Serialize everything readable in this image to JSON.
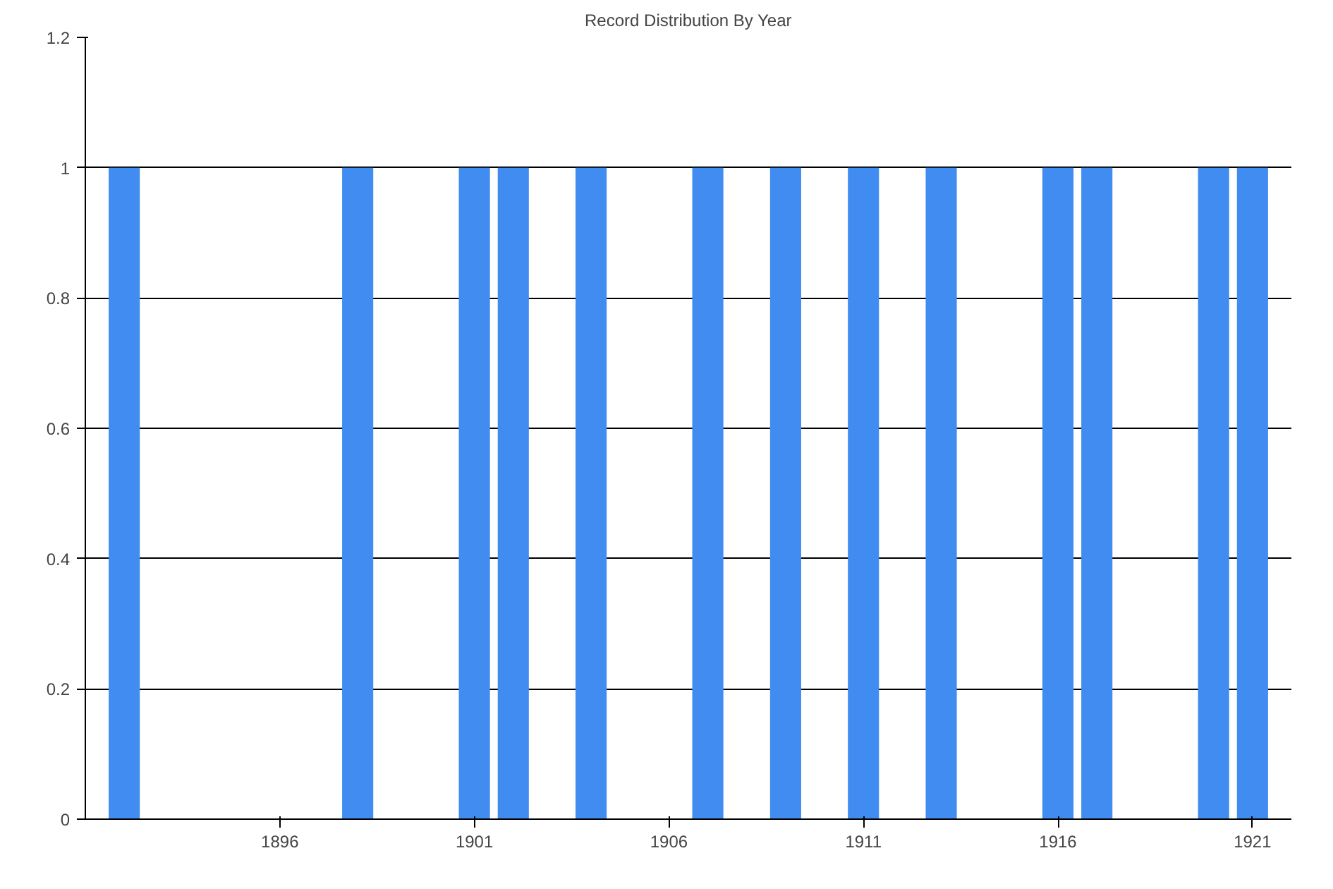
{
  "chart_data": {
    "type": "bar",
    "title": "Record Distribution By Year",
    "x": [
      1892,
      1898,
      1901,
      1902,
      1904,
      1907,
      1909,
      1911,
      1913,
      1916,
      1917,
      1920,
      1921
    ],
    "values": [
      1,
      1,
      1,
      1,
      1,
      1,
      1,
      1,
      1,
      1,
      1,
      1,
      1
    ],
    "color": "#418cf0",
    "xlim": [
      1891,
      1922
    ],
    "xticks": [
      1896,
      1901,
      1906,
      1911,
      1916,
      1921
    ],
    "ylim": [
      0,
      1.2
    ],
    "yticks": [
      0,
      0.2,
      0.4,
      0.6,
      0.8,
      1,
      1.2
    ],
    "grid": "y"
  }
}
